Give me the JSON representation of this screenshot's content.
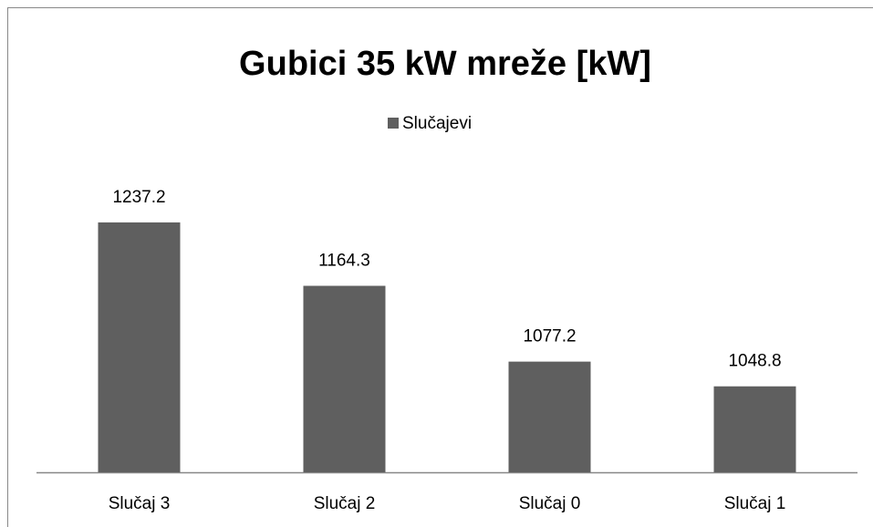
{
  "chart_data": {
    "type": "bar",
    "title": "Gubici 35 kW mreže [kW]",
    "categories": [
      "Slučaj 3",
      "Slučaj 2",
      "Slučaj 0",
      "Slučaj 1"
    ],
    "series": [
      {
        "name": "Slučajevi",
        "color": "#5f5f5f",
        "values": [
          1237.2,
          1164.3,
          1077.2,
          1048.8
        ]
      }
    ],
    "ylim": [
      950,
      1300
    ],
    "legend": "top"
  }
}
